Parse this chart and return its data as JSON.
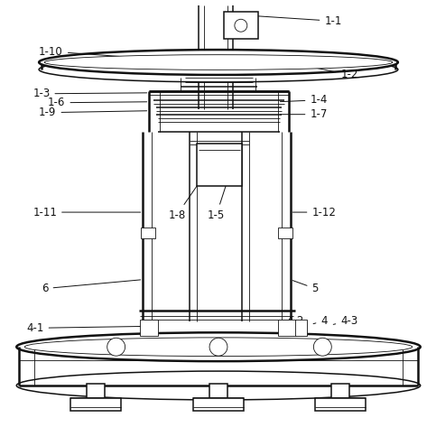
{
  "bg_color": "#ffffff",
  "line_color": "#111111",
  "lw_thick": 1.8,
  "lw_med": 1.1,
  "lw_thin": 0.6,
  "fontsize": 8.5
}
